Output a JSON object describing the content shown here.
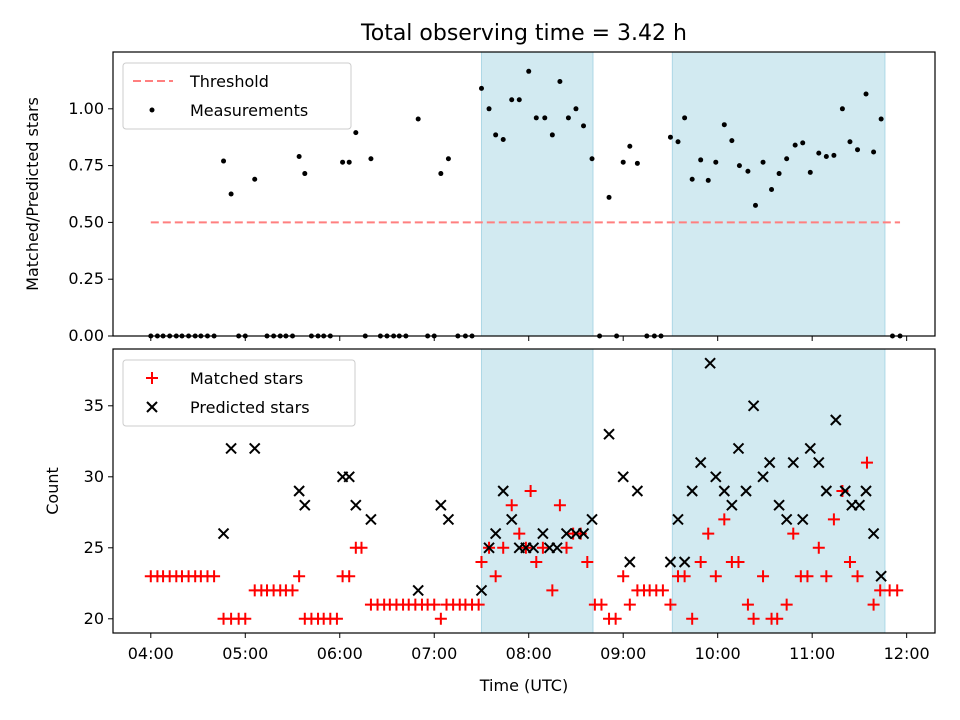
{
  "chart_data": {
    "type": "scatter",
    "title": "Total observing time = 3.42 h",
    "xlabel": "Time (UTC)",
    "x_ticks": [
      "04:00",
      "05:00",
      "06:00",
      "07:00",
      "08:00",
      "09:00",
      "10:00",
      "11:00",
      "12:00"
    ],
    "x_range_hours": [
      3.6,
      12.3
    ],
    "shaded_intervals_hours": [
      [
        7.5,
        8.68
      ],
      [
        9.52,
        11.77
      ]
    ],
    "shade_color": "#add8e6",
    "top_panel": {
      "ylabel": "Matched/Predicted stars",
      "ylim": [
        0,
        1.25
      ],
      "y_ticks": [
        "0.00",
        "0.25",
        "0.50",
        "0.75",
        "1.00"
      ],
      "threshold": {
        "name": "Threshold",
        "value": 0.5,
        "x_range_hours": [
          4.0,
          11.93
        ],
        "color": "#ff7f7f"
      },
      "measurements_name": "Measurements",
      "measurements": [
        [
          4.0,
          0
        ],
        [
          4.07,
          0
        ],
        [
          4.13,
          0
        ],
        [
          4.2,
          0
        ],
        [
          4.27,
          0
        ],
        [
          4.33,
          0
        ],
        [
          4.4,
          0
        ],
        [
          4.47,
          0
        ],
        [
          4.53,
          0
        ],
        [
          4.6,
          0
        ],
        [
          4.67,
          0
        ],
        [
          4.77,
          0.77
        ],
        [
          4.85,
          0.625
        ],
        [
          4.93,
          0
        ],
        [
          5.0,
          0
        ],
        [
          5.1,
          0.69
        ],
        [
          5.23,
          0
        ],
        [
          5.3,
          0
        ],
        [
          5.37,
          0
        ],
        [
          5.43,
          0
        ],
        [
          5.5,
          0
        ],
        [
          5.57,
          0.79
        ],
        [
          5.63,
          0.715
        ],
        [
          5.7,
          0
        ],
        [
          5.77,
          0
        ],
        [
          5.83,
          0
        ],
        [
          5.9,
          0
        ],
        [
          6.03,
          0.765
        ],
        [
          6.1,
          0.765
        ],
        [
          6.17,
          0.895
        ],
        [
          6.27,
          0
        ],
        [
          6.33,
          0.78
        ],
        [
          6.43,
          0
        ],
        [
          6.5,
          0
        ],
        [
          6.57,
          0
        ],
        [
          6.63,
          0
        ],
        [
          6.7,
          0
        ],
        [
          6.83,
          0.955
        ],
        [
          6.93,
          0
        ],
        [
          7.0,
          0
        ],
        [
          7.07,
          0.715
        ],
        [
          7.15,
          0.78
        ],
        [
          7.25,
          0
        ],
        [
          7.33,
          0
        ],
        [
          7.4,
          0
        ],
        [
          7.5,
          1.09
        ],
        [
          7.58,
          1.0
        ],
        [
          7.65,
          0.885
        ],
        [
          7.73,
          0.865
        ],
        [
          7.82,
          1.04
        ],
        [
          7.9,
          1.04
        ],
        [
          8.0,
          1.165
        ],
        [
          8.08,
          0.96
        ],
        [
          8.17,
          0.96
        ],
        [
          8.25,
          0.885
        ],
        [
          8.33,
          1.12
        ],
        [
          8.42,
          0.96
        ],
        [
          8.5,
          1.0
        ],
        [
          8.58,
          0.925
        ],
        [
          8.67,
          0.78
        ],
        [
          8.75,
          0
        ],
        [
          8.85,
          0.61
        ],
        [
          8.93,
          0
        ],
        [
          9.0,
          0.765
        ],
        [
          9.07,
          0.835
        ],
        [
          9.15,
          0.76
        ],
        [
          9.25,
          0
        ],
        [
          9.33,
          0
        ],
        [
          9.4,
          0
        ],
        [
          9.5,
          0.875
        ],
        [
          9.58,
          0.855
        ],
        [
          9.65,
          0.96
        ],
        [
          9.73,
          0.69
        ],
        [
          9.82,
          0.775
        ],
        [
          9.9,
          0.685
        ],
        [
          9.98,
          0.765
        ],
        [
          10.07,
          0.93
        ],
        [
          10.15,
          0.86
        ],
        [
          10.23,
          0.75
        ],
        [
          10.32,
          0.725
        ],
        [
          10.4,
          0.575
        ],
        [
          10.48,
          0.765
        ],
        [
          10.57,
          0.645
        ],
        [
          10.65,
          0.715
        ],
        [
          10.73,
          0.78
        ],
        [
          10.82,
          0.84
        ],
        [
          10.9,
          0.85
        ],
        [
          10.98,
          0.72
        ],
        [
          11.07,
          0.805
        ],
        [
          11.15,
          0.79
        ],
        [
          11.23,
          0.795
        ],
        [
          11.32,
          1.0
        ],
        [
          11.4,
          0.855
        ],
        [
          11.48,
          0.82
        ],
        [
          11.57,
          1.065
        ],
        [
          11.65,
          0.81
        ],
        [
          11.73,
          0.955
        ],
        [
          11.85,
          0
        ],
        [
          11.93,
          0
        ]
      ]
    },
    "bottom_panel": {
      "ylabel": "Count",
      "ylim": [
        19,
        39
      ],
      "y_ticks": [
        "20",
        "25",
        "30",
        "35"
      ],
      "matched_name": "Matched stars",
      "predicted_name": "Predicted stars",
      "matched_color": "#ff0000",
      "predicted_color": "#000000",
      "matched": [
        [
          4.0,
          23
        ],
        [
          4.07,
          23
        ],
        [
          4.13,
          23
        ],
        [
          4.2,
          23
        ],
        [
          4.27,
          23
        ],
        [
          4.33,
          23
        ],
        [
          4.4,
          23
        ],
        [
          4.47,
          23
        ],
        [
          4.53,
          23
        ],
        [
          4.6,
          23
        ],
        [
          4.67,
          23
        ],
        [
          4.77,
          20
        ],
        [
          4.85,
          20
        ],
        [
          4.93,
          20
        ],
        [
          5.0,
          20
        ],
        [
          5.1,
          22
        ],
        [
          5.17,
          22
        ],
        [
          5.23,
          22
        ],
        [
          5.3,
          22
        ],
        [
          5.37,
          22
        ],
        [
          5.43,
          22
        ],
        [
          5.5,
          22
        ],
        [
          5.57,
          23
        ],
        [
          5.63,
          20
        ],
        [
          5.7,
          20
        ],
        [
          5.77,
          20
        ],
        [
          5.83,
          20
        ],
        [
          5.9,
          20
        ],
        [
          5.97,
          20
        ],
        [
          6.03,
          23
        ],
        [
          6.1,
          23
        ],
        [
          6.17,
          25
        ],
        [
          6.23,
          25
        ],
        [
          6.33,
          21
        ],
        [
          6.4,
          21
        ],
        [
          6.47,
          21
        ],
        [
          6.53,
          21
        ],
        [
          6.6,
          21
        ],
        [
          6.67,
          21
        ],
        [
          6.73,
          21
        ],
        [
          6.8,
          21
        ],
        [
          6.87,
          21
        ],
        [
          6.93,
          21
        ],
        [
          7.0,
          21
        ],
        [
          7.07,
          20
        ],
        [
          7.13,
          21
        ],
        [
          7.2,
          21
        ],
        [
          7.27,
          21
        ],
        [
          7.33,
          21
        ],
        [
          7.4,
          21
        ],
        [
          7.47,
          21
        ],
        [
          7.5,
          24
        ],
        [
          7.58,
          25
        ],
        [
          7.65,
          23
        ],
        [
          7.73,
          25
        ],
        [
          7.82,
          28
        ],
        [
          7.9,
          26
        ],
        [
          7.97,
          25
        ],
        [
          8.02,
          29
        ],
        [
          8.08,
          24
        ],
        [
          8.15,
          25
        ],
        [
          8.25,
          22
        ],
        [
          8.33,
          28
        ],
        [
          8.4,
          25
        ],
        [
          8.47,
          26
        ],
        [
          8.55,
          26
        ],
        [
          8.62,
          24
        ],
        [
          8.7,
          21
        ],
        [
          8.77,
          21
        ],
        [
          8.85,
          20
        ],
        [
          8.92,
          20
        ],
        [
          9.0,
          23
        ],
        [
          9.07,
          21
        ],
        [
          9.15,
          22
        ],
        [
          9.22,
          22
        ],
        [
          9.28,
          22
        ],
        [
          9.35,
          22
        ],
        [
          9.42,
          22
        ],
        [
          9.5,
          21
        ],
        [
          9.58,
          23
        ],
        [
          9.65,
          23
        ],
        [
          9.73,
          20
        ],
        [
          9.82,
          24
        ],
        [
          9.9,
          26
        ],
        [
          9.98,
          23
        ],
        [
          10.07,
          27
        ],
        [
          10.15,
          24
        ],
        [
          10.22,
          24
        ],
        [
          10.32,
          21
        ],
        [
          10.38,
          20
        ],
        [
          10.48,
          23
        ],
        [
          10.57,
          20
        ],
        [
          10.63,
          20
        ],
        [
          10.73,
          21
        ],
        [
          10.8,
          26
        ],
        [
          10.88,
          23
        ],
        [
          10.95,
          23
        ],
        [
          11.07,
          25
        ],
        [
          11.15,
          23
        ],
        [
          11.23,
          27
        ],
        [
          11.32,
          29
        ],
        [
          11.4,
          24
        ],
        [
          11.48,
          23
        ],
        [
          11.58,
          31
        ],
        [
          11.65,
          21
        ],
        [
          11.72,
          22
        ],
        [
          11.82,
          22
        ],
        [
          11.9,
          22
        ]
      ],
      "predicted": [
        [
          4.77,
          26
        ],
        [
          4.85,
          32
        ],
        [
          5.1,
          32
        ],
        [
          5.57,
          29
        ],
        [
          5.63,
          28
        ],
        [
          6.03,
          30
        ],
        [
          6.1,
          30
        ],
        [
          6.17,
          28
        ],
        [
          6.33,
          27
        ],
        [
          6.83,
          22
        ],
        [
          7.07,
          28
        ],
        [
          7.15,
          27
        ],
        [
          7.5,
          22
        ],
        [
          7.58,
          25
        ],
        [
          7.65,
          26
        ],
        [
          7.73,
          29
        ],
        [
          7.82,
          27
        ],
        [
          7.9,
          25
        ],
        [
          7.97,
          25
        ],
        [
          8.05,
          25
        ],
        [
          8.15,
          26
        ],
        [
          8.22,
          25
        ],
        [
          8.3,
          25
        ],
        [
          8.4,
          26
        ],
        [
          8.5,
          26
        ],
        [
          8.58,
          26
        ],
        [
          8.67,
          27
        ],
        [
          8.85,
          33
        ],
        [
          9.0,
          30
        ],
        [
          9.07,
          24
        ],
        [
          9.15,
          29
        ],
        [
          9.5,
          24
        ],
        [
          9.58,
          27
        ],
        [
          9.65,
          24
        ],
        [
          9.73,
          29
        ],
        [
          9.82,
          31
        ],
        [
          9.92,
          38
        ],
        [
          9.98,
          30
        ],
        [
          10.07,
          29
        ],
        [
          10.15,
          28
        ],
        [
          10.22,
          32
        ],
        [
          10.3,
          29
        ],
        [
          10.38,
          35
        ],
        [
          10.48,
          30
        ],
        [
          10.55,
          31
        ],
        [
          10.65,
          28
        ],
        [
          10.73,
          27
        ],
        [
          10.8,
          31
        ],
        [
          10.9,
          27
        ],
        [
          10.98,
          32
        ],
        [
          11.07,
          31
        ],
        [
          11.15,
          29
        ],
        [
          11.25,
          34
        ],
        [
          11.35,
          29
        ],
        [
          11.42,
          28
        ],
        [
          11.5,
          28
        ],
        [
          11.57,
          29
        ],
        [
          11.65,
          26
        ],
        [
          11.73,
          23
        ]
      ]
    }
  }
}
